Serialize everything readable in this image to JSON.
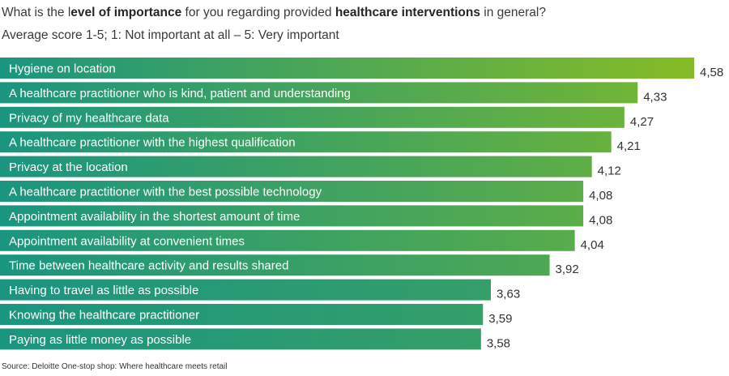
{
  "header": {
    "title_parts": [
      {
        "text": "What is the l",
        "bold": false
      },
      {
        "text": "evel of importance",
        "bold": true
      },
      {
        "text": " for you regarding provided ",
        "bold": false
      },
      {
        "text": "healthcare interventions",
        "bold": true
      },
      {
        "text": " in general?",
        "bold": false
      }
    ],
    "subtitle": "Average score 1-5; 1: Not important at all – 5: Very important"
  },
  "colors": {
    "bar_start": "#1a9580",
    "bar_end_high": "#86bc25",
    "label_text": "#ffffff",
    "value_text": "#333333"
  },
  "chart_data": {
    "type": "bar",
    "orientation": "horizontal",
    "categories": [
      "Hygiene on location",
      "A healthcare practitioner who is kind, patient and understanding",
      "Privacy of my healthcare data",
      "A healthcare practitioner with the highest qualification",
      "Privacy at the location",
      "A healthcare practitioner with the best possible technology",
      "Appointment availability in the shortest amount of time",
      "Appointment availability at convenient times",
      "Time between healthcare activity and results shared",
      "Having to travel as little as possible",
      "Knowing the healthcare practitioner",
      "Paying as little money as possible"
    ],
    "values": [
      4.58,
      4.33,
      4.27,
      4.21,
      4.12,
      4.08,
      4.08,
      4.04,
      3.92,
      3.63,
      3.59,
      3.58
    ],
    "value_labels": [
      "4,58",
      "4,33",
      "4,27",
      "4,21",
      "4,12",
      "4,08",
      "4,08",
      "4,04",
      "3,92",
      "3,63",
      "3,59",
      "3,58"
    ],
    "grid": false,
    "legend": "none"
  },
  "footer": {
    "source": "Source: Deloitte One-stop shop: Where healthcare meets retail"
  }
}
